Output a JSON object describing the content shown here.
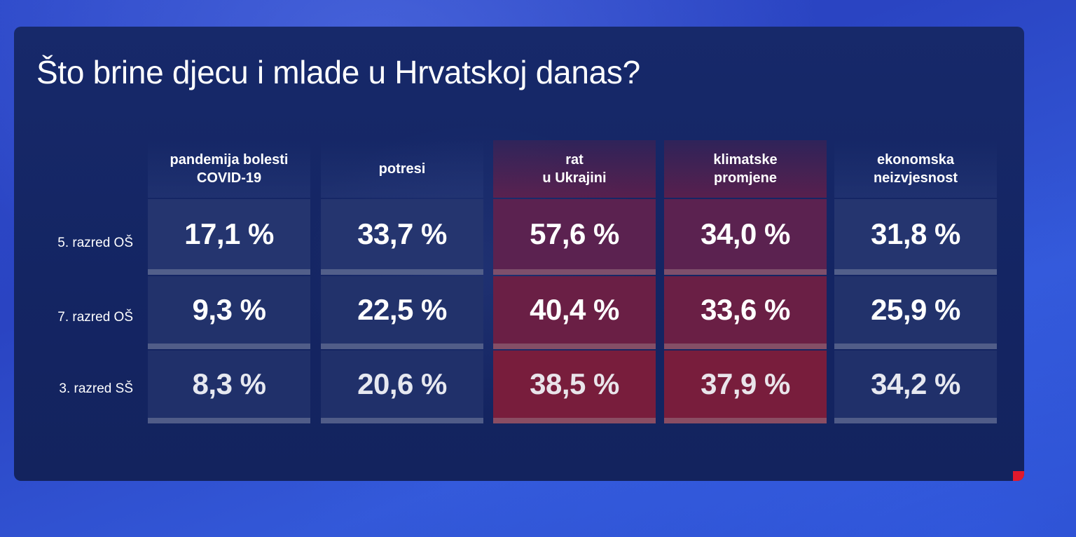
{
  "title": "Što brine djecu i mlade u Hrvatskoj danas?",
  "colors": {
    "background": "#2d49c9",
    "panel": "#17296a",
    "cell_blue": "#22326e",
    "cell_red": "#6a1f45",
    "accent": "#e0192c",
    "text": "#ffffff"
  },
  "chart_data": {
    "type": "table",
    "title": "Što brine djecu i mlade u Hrvatskoj danas?",
    "columns": [
      "pandemija bolesti\nCOVID-19",
      "potresi",
      "rat\nu Ukrajini",
      "klimatske\npromjene",
      "ekonomska\nneizvjesnost"
    ],
    "rows": [
      {
        "label": "5. razred OŠ",
        "cells": [
          "17,1 %",
          "33,7 %",
          "57,6 %",
          "34,0 %",
          "31,8 %"
        ],
        "values": [
          17.1,
          33.7,
          57.6,
          34.0,
          31.8
        ]
      },
      {
        "label": "7. razred OŠ",
        "cells": [
          "9,3 %",
          "22,5 %",
          "40,4 %",
          "33,6 %",
          "25,9 %"
        ],
        "values": [
          9.3,
          22.5,
          40.4,
          33.6,
          25.9
        ]
      },
      {
        "label": "3. razred SŠ",
        "cells": [
          "8,3 %",
          "20,6 %",
          "38,5 %",
          "37,9 %",
          "34,2 %"
        ],
        "values": [
          8.3,
          20.6,
          38.5,
          37.9,
          34.2
        ]
      }
    ],
    "highlighted_columns": [
      "rat\nu Ukrajini",
      "klimatske\npromjene"
    ],
    "unit": "%"
  }
}
